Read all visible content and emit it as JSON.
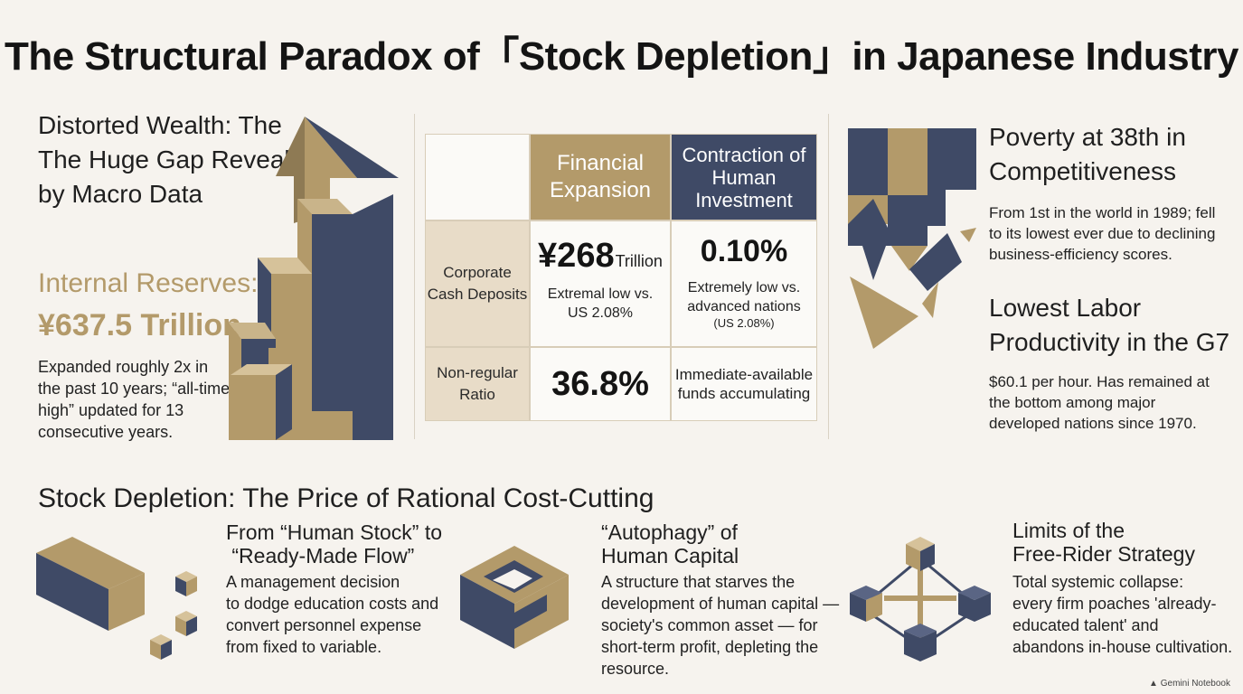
{
  "title": "The Structural Paradox of「Stock Depletion」in Japanese Industry",
  "left": {
    "heading_lines": [
      "Distorted Wealth: The",
      "The Huge Gap Revealed",
      "by Macro Data"
    ],
    "reserves_label": "Internal Reserves:",
    "reserves_value": "¥637.5 Trillion",
    "desc_lines": [
      "Expanded roughly 2x in",
      "the past 10 years; “all-time",
      "high” updated for 13",
      "consecutive years."
    ]
  },
  "table": {
    "col1": "Financial\nExpansion",
    "col2": "Contraction of\nHuman\nInvestment",
    "row1_label": "Corporate\nCash Deposits",
    "row1_value": "¥268",
    "row1_unit": "Trillion",
    "row1_note": "Extremal low vs.\nUS 2.08%",
    "row1_pct": "0.10%",
    "row1_pct_note": "Extremely low vs.\nadvanced nations",
    "row1_pct_sub": "(US 2.08%)",
    "row2_label": "Non-regular\nRatio",
    "row2_value": "36.8%",
    "row2_note": "Immediate-available\nfunds accumulating"
  },
  "right": {
    "h1_lines": [
      "Poverty at 38th in",
      "Competitiveness"
    ],
    "p1_lines": [
      "From 1st in the world in 1989; fell",
      "to its lowest ever due to declining",
      "business-efficiency scores."
    ],
    "h2_lines": [
      "Lowest Labor",
      "Productivity in the G7"
    ],
    "p2_lines": [
      "$60.1 per hour. Has remained at",
      "the bottom among major",
      "developed nations since 1970."
    ]
  },
  "bottom": {
    "heading": "Stock Depletion: The Price of Rational Cost-Cutting",
    "c1_title_lines": [
      "From “Human Stock” to",
      " “Ready-Made Flow”"
    ],
    "c1_body_lines": [
      "A management decision",
      "to dodge education costs and",
      "convert personnel expense",
      "from fixed to variable."
    ],
    "c2_title_lines": [
      "“Autophagy” of",
      "Human Capital"
    ],
    "c2_body_lines": [
      "A structure that starves the",
      "development of human capital —",
      "society's common asset — for",
      "short-term profit, depleting the",
      "resource."
    ],
    "c3_title_lines": [
      "Limits of the",
      "Free-Rider Strategy"
    ],
    "c3_body_lines": [
      "Total systemic collapse:",
      "every firm poaches 'already-",
      "educated talent' and",
      "abandons in-house cultivation."
    ]
  },
  "brand": "Gemini Notebook",
  "colors": {
    "gold": "#b39a6a",
    "navy": "#3f4a66",
    "beige": "#e8dcc8",
    "background": "#f6f3ee"
  }
}
